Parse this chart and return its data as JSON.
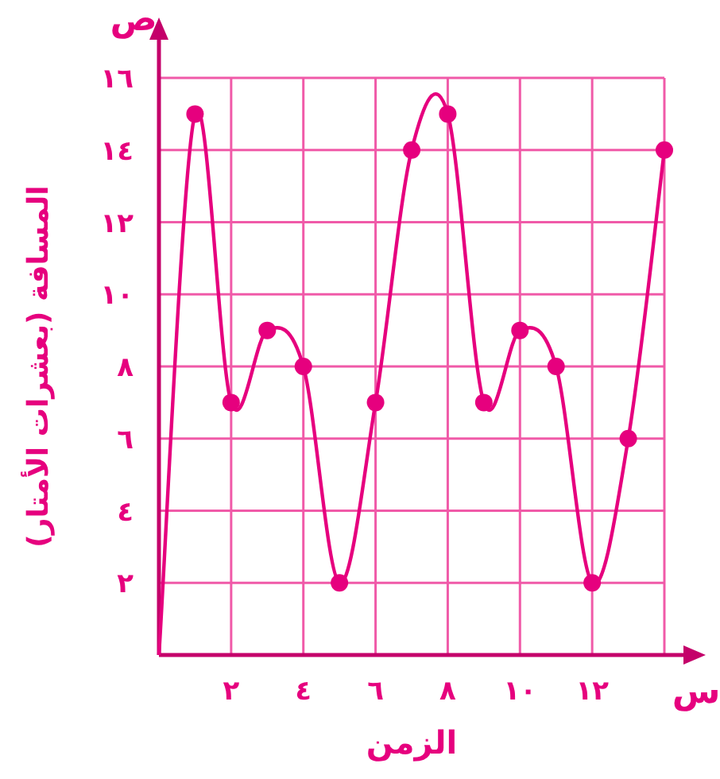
{
  "chart_data": {
    "type": "line",
    "xlabel": "الزمن",
    "ylabel": "المسافة (بعشرات الأمتار)",
    "annotations": [
      "س",
      "ص"
    ],
    "xlim": [
      0,
      14
    ],
    "ylim": [
      0,
      16
    ],
    "xticks": [
      {
        "value": 2,
        "label": "٢"
      },
      {
        "value": 4,
        "label": "٤"
      },
      {
        "value": 6,
        "label": "٦"
      },
      {
        "value": 8,
        "label": "٨"
      },
      {
        "value": 10,
        "label": "١٠"
      },
      {
        "value": 12,
        "label": "١٢"
      },
      {
        "value": 14,
        "label": null
      }
    ],
    "yticks": [
      {
        "value": 2,
        "label": "٢"
      },
      {
        "value": 4,
        "label": "٤"
      },
      {
        "value": 6,
        "label": "٦"
      },
      {
        "value": 8,
        "label": "٨"
      },
      {
        "value": 10,
        "label": "١٠"
      },
      {
        "value": 12,
        "label": "١٢"
      },
      {
        "value": 14,
        "label": "١٤"
      },
      {
        "value": 16,
        "label": "١٦"
      }
    ],
    "grid": true,
    "series": [
      {
        "type": "line",
        "marker": "none",
        "color": "#e6007e",
        "x": [
          0,
          1,
          2,
          3,
          4,
          5,
          6,
          7,
          8,
          9,
          10,
          11,
          12,
          13,
          14
        ],
        "values": [
          0,
          15,
          7,
          9,
          8,
          2,
          7,
          14,
          15,
          7,
          9,
          8,
          2,
          6,
          14
        ]
      },
      {
        "type": "scatter",
        "marker": "circle",
        "color": "#e6007e",
        "x": [
          1,
          2,
          3,
          4,
          5,
          6,
          7,
          8,
          9,
          10,
          11,
          12,
          13,
          14
        ],
        "values": [
          15,
          7,
          9,
          8,
          2,
          7,
          14,
          15,
          7,
          9,
          8,
          2,
          6,
          14
        ]
      }
    ]
  }
}
